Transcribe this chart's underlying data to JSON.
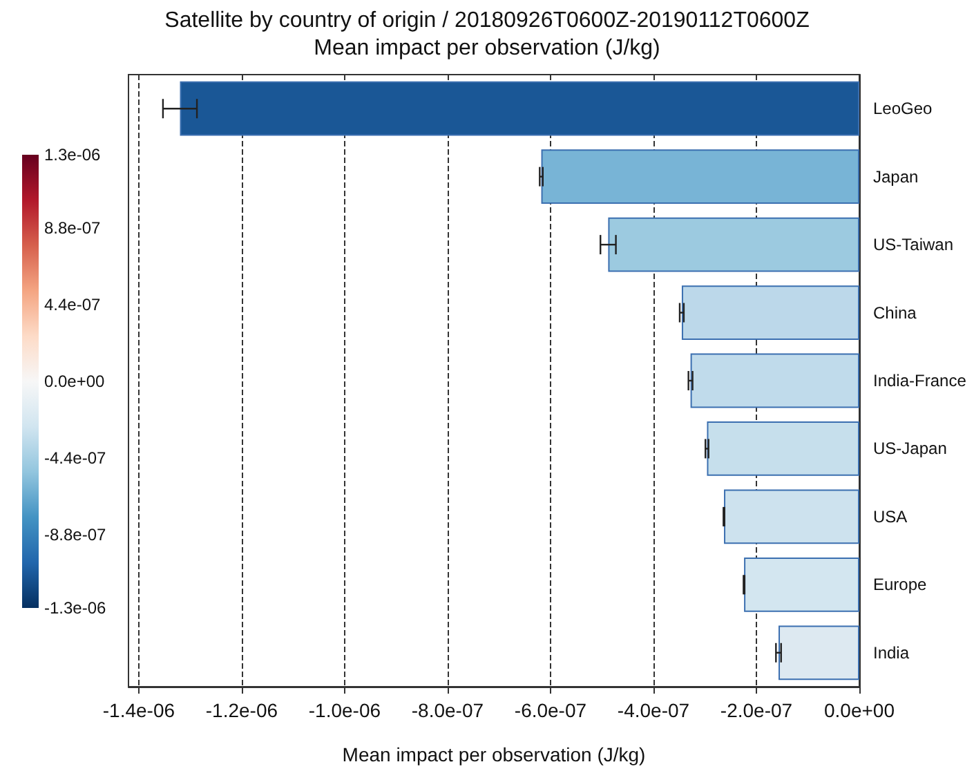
{
  "chart_data": {
    "type": "bar",
    "orientation": "horizontal",
    "title": "Satellite by country of origin / 20180926T0600Z-20190112T0600Z",
    "subtitle": "Mean impact per observation (J/kg)",
    "xlabel": "Mean impact per observation (J/kg)",
    "categories": [
      "LeoGeo",
      "Japan",
      "US-Taiwan",
      "China",
      "India-France",
      "US-Japan",
      "USA",
      "Europe",
      "India"
    ],
    "values": [
      -1.32e-06,
      -6.18e-07,
      -4.88e-07,
      -3.45e-07,
      -3.28e-07,
      -2.96e-07,
      -2.63e-07,
      -2.24e-07,
      -1.57e-07
    ],
    "errors": [
      3.3e-08,
      3e-09,
      1.5e-08,
      4e-09,
      4e-09,
      3e-09,
      1e-09,
      1e-09,
      5e-09
    ],
    "colors": [
      "#1a5796",
      "#78b4d6",
      "#9ccae0",
      "#bcd8ea",
      "#c0dbeb",
      "#c6dfec",
      "#cde2ee",
      "#d3e6f0",
      "#dde9f1"
    ],
    "xlim": [
      -1.42e-06,
      0
    ],
    "xticks": [
      {
        "value": -1.4e-06,
        "label": "-1.4e-06"
      },
      {
        "value": -1.2e-06,
        "label": "-1.2e-06"
      },
      {
        "value": -1e-06,
        "label": "-1.0e-06"
      },
      {
        "value": -8e-07,
        "label": "-8.0e-07"
      },
      {
        "value": -6e-07,
        "label": "-6.0e-07"
      },
      {
        "value": -4e-07,
        "label": "-4.0e-07"
      },
      {
        "value": -2e-07,
        "label": "-2.0e-07"
      },
      {
        "value": 0,
        "label": "0.0e+00"
      }
    ],
    "clim": [
      -1.3e-06,
      1.3e-06
    ],
    "cticks": [
      {
        "value": -1.3e-06,
        "label": "-1.3e-06"
      },
      {
        "value": -8.8e-07,
        "label": "-8.8e-07"
      },
      {
        "value": -4.4e-07,
        "label": "-4.4e-07"
      },
      {
        "value": 0,
        "label": "0.0e+00"
      },
      {
        "value": 4.4e-07,
        "label": "4.4e-07"
      },
      {
        "value": 8.8e-07,
        "label": "8.8e-07"
      },
      {
        "value": 1.3e-06,
        "label": "1.3e-06"
      }
    ],
    "grid": "x"
  }
}
